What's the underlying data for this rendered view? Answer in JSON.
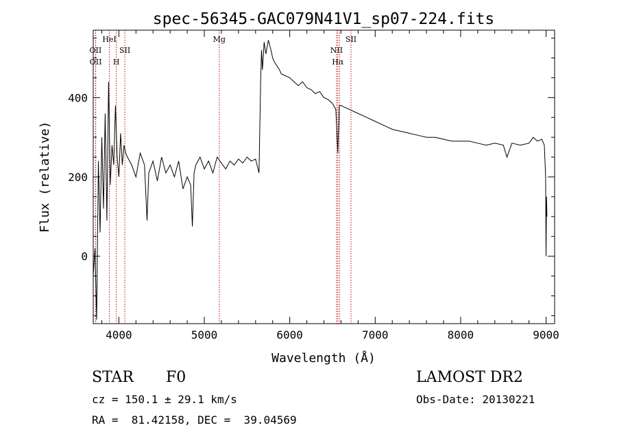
{
  "chart_data": {
    "type": "line",
    "title": "spec-56345-GAC079N41V1_sp07-224.fits",
    "xlabel": "Wavelength (Å)",
    "ylabel": "Flux (relative)",
    "xlim": [
      3700,
      9100
    ],
    "ylim": [
      -170,
      570
    ],
    "x_ticks": [
      4000,
      5000,
      6000,
      7000,
      8000,
      9000
    ],
    "y_ticks": [
      0,
      200,
      400
    ],
    "grid": false,
    "line_color": "#000000",
    "marker_color": "#c00000",
    "series": [
      {
        "x": [
          3700,
          3720,
          3740,
          3760,
          3780,
          3800,
          3820,
          3840,
          3860,
          3880,
          3900,
          3920,
          3940,
          3960,
          3980,
          4000,
          4020,
          4040,
          4060,
          4080,
          4100,
          4150,
          4200,
          4250,
          4300,
          4330,
          4350,
          4400,
          4450,
          4500,
          4550,
          4600,
          4650,
          4700,
          4750,
          4800,
          4840,
          4860,
          4880,
          4900,
          4950,
          5000,
          5050,
          5100,
          5150,
          5200,
          5250,
          5300,
          5350,
          5400,
          5450,
          5500,
          5550,
          5600,
          5640,
          5660,
          5670,
          5680,
          5700,
          5720,
          5750,
          5780,
          5800,
          5820,
          5850,
          5880,
          5900,
          5950,
          6000,
          6050,
          6100,
          6150,
          6200,
          6250,
          6300,
          6350,
          6400,
          6450,
          6500,
          6540,
          6563,
          6580,
          6600,
          6650,
          6700,
          6800,
          6900,
          7000,
          7100,
          7200,
          7300,
          7400,
          7500,
          7600,
          7700,
          7800,
          7900,
          8000,
          8100,
          8200,
          8300,
          8400,
          8500,
          8542,
          8600,
          8700,
          8800,
          8850,
          8900,
          8950,
          8980,
          8995,
          9000,
          9005,
          9010
        ],
        "y": [
          -50,
          20,
          -160,
          240,
          60,
          300,
          120,
          360,
          90,
          440,
          180,
          280,
          230,
          380,
          250,
          200,
          310,
          230,
          280,
          260,
          250,
          230,
          200,
          260,
          230,
          90,
          210,
          240,
          190,
          250,
          210,
          230,
          200,
          240,
          170,
          200,
          180,
          75,
          210,
          230,
          250,
          220,
          240,
          210,
          250,
          235,
          220,
          240,
          230,
          245,
          235,
          250,
          240,
          245,
          210,
          450,
          520,
          470,
          540,
          510,
          545,
          520,
          500,
          490,
          480,
          470,
          460,
          455,
          450,
          440,
          430,
          440,
          425,
          420,
          410,
          415,
          400,
          395,
          385,
          370,
          260,
          380,
          380,
          375,
          370,
          360,
          350,
          340,
          330,
          320,
          315,
          310,
          305,
          300,
          300,
          295,
          290,
          290,
          290,
          285,
          280,
          285,
          280,
          250,
          285,
          280,
          285,
          300,
          290,
          295,
          280,
          200,
          0,
          150,
          100
        ]
      }
    ],
    "line_markers": [
      {
        "x": 3727,
        "label": "OII",
        "row": 1
      },
      {
        "x": 3729,
        "label": "OII",
        "row": 2
      },
      {
        "x": 3889,
        "label": "HeI",
        "row": 0
      },
      {
        "x": 3970,
        "label": "H",
        "row": 2
      },
      {
        "x": 4070,
        "label": "SII",
        "row": 1
      },
      {
        "x": 5175,
        "label": "Mg",
        "row": 0
      },
      {
        "x": 6548,
        "label": "NII",
        "row": 1
      },
      {
        "x": 6563,
        "label": "Hα",
        "row": 2
      },
      {
        "x": 6583,
        "label": "",
        "row": 1
      },
      {
        "x": 6717,
        "label": "SII",
        "row": 0
      }
    ]
  },
  "info": {
    "class_label": "STAR",
    "subclass_label": "F0",
    "survey_label": "LAMOST DR2",
    "redshift_text": "cz = 150.1 ± 29.1 km/s",
    "obs_date_text": "Obs-Date: 20130221",
    "coords_text": "RA =  81.42158, DEC =  39.04569"
  }
}
